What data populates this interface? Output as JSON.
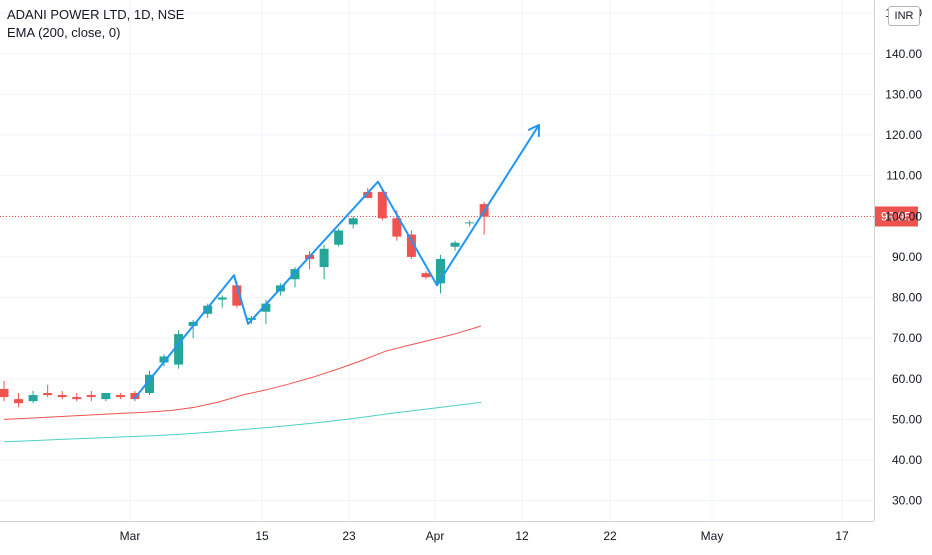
{
  "header": {
    "symbol_title": "ADANI POWER LTD, 1D, NSE",
    "indicator": "EMA (200, close, 0)",
    "currency": "INR"
  },
  "last_price": "99.95",
  "colors": {
    "up": "#26a69a",
    "down": "#ef5350",
    "ema_red": "#ef5350",
    "ema_teal": "#4dd0c8",
    "drawing": "#2196f3",
    "grid": "#f0f3fa",
    "axis_text": "#131722"
  },
  "chart_data": {
    "type": "candlestick",
    "y_axis": {
      "min": 25,
      "max": 152,
      "ticks": [
        "30.00",
        "40.00",
        "50.00",
        "60.00",
        "70.00",
        "80.00",
        "90.00",
        "100.00",
        "110.00",
        "120.00",
        "130.00",
        "140.00",
        "150.00"
      ]
    },
    "x_axis": {
      "labels": [
        "Mar",
        "15",
        "23",
        "Apr",
        "12",
        "22",
        "May",
        "17"
      ]
    },
    "price_line": 99.95,
    "candles": [
      {
        "o": 57.5,
        "h": 59.5,
        "l": 54.5,
        "c": 55.5
      },
      {
        "o": 55.0,
        "h": 56.5,
        "l": 53.0,
        "c": 54.0
      },
      {
        "o": 54.5,
        "h": 57.0,
        "l": 54.0,
        "c": 56.0
      },
      {
        "o": 56.5,
        "h": 58.5,
        "l": 55.5,
        "c": 56.0
      },
      {
        "o": 56.0,
        "h": 57.0,
        "l": 55.0,
        "c": 55.5
      },
      {
        "o": 55.5,
        "h": 56.5,
        "l": 54.5,
        "c": 55.0
      },
      {
        "o": 56.0,
        "h": 57.0,
        "l": 54.5,
        "c": 55.5
      },
      {
        "o": 55.0,
        "h": 56.5,
        "l": 54.5,
        "c": 56.5
      },
      {
        "o": 56.0,
        "h": 56.5,
        "l": 55.0,
        "c": 55.5
      },
      {
        "o": 56.5,
        "h": 57.0,
        "l": 54.5,
        "c": 55.0
      },
      {
        "o": 56.5,
        "h": 62.0,
        "l": 56.0,
        "c": 61.0
      },
      {
        "o": 64.0,
        "h": 66.0,
        "l": 63.0,
        "c": 65.5
      },
      {
        "o": 63.5,
        "h": 72.0,
        "l": 62.5,
        "c": 71.0
      },
      {
        "o": 73.0,
        "h": 74.5,
        "l": 70.0,
        "c": 74.0
      },
      {
        "o": 76.0,
        "h": 78.5,
        "l": 75.0,
        "c": 78.0
      },
      {
        "o": 79.5,
        "h": 80.5,
        "l": 77.5,
        "c": 80.0
      },
      {
        "o": 83.0,
        "h": 84.0,
        "l": 77.5,
        "c": 78.0
      },
      {
        "o": 74.5,
        "h": 75.5,
        "l": 73.5,
        "c": 75.0
      },
      {
        "o": 76.5,
        "h": 79.5,
        "l": 73.5,
        "c": 78.5
      },
      {
        "o": 81.5,
        "h": 83.5,
        "l": 80.5,
        "c": 83.0
      },
      {
        "o": 84.5,
        "h": 87.5,
        "l": 82.5,
        "c": 87.0
      },
      {
        "o": 90.5,
        "h": 91.5,
        "l": 87.0,
        "c": 89.5
      },
      {
        "o": 87.5,
        "h": 93.0,
        "l": 84.5,
        "c": 92.0
      },
      {
        "o": 93.0,
        "h": 97.0,
        "l": 92.5,
        "c": 96.5
      },
      {
        "o": 98.0,
        "h": 100.0,
        "l": 97.0,
        "c": 99.5
      },
      {
        "o": 106.0,
        "h": 107.0,
        "l": 104.5,
        "c": 104.5
      },
      {
        "o": 106.0,
        "h": 107.0,
        "l": 99.0,
        "c": 99.5
      },
      {
        "o": 99.5,
        "h": 101.5,
        "l": 94.0,
        "c": 95.0
      },
      {
        "o": 95.5,
        "h": 96.5,
        "l": 89.5,
        "c": 90.0
      },
      {
        "o": 86.0,
        "h": 86.5,
        "l": 84.5,
        "c": 85.0
      },
      {
        "o": 83.5,
        "h": 90.5,
        "l": 81.0,
        "c": 89.5
      },
      {
        "o": 92.5,
        "h": 94.0,
        "l": 91.5,
        "c": 93.5
      },
      {
        "o": 98.5,
        "h": 99.0,
        "l": 97.5,
        "c": 98.5
      },
      {
        "o": 103.0,
        "h": 103.5,
        "l": 95.5,
        "c": 99.95
      }
    ],
    "ema_red": [
      50.0,
      50.3,
      50.6,
      50.9,
      51.2,
      51.5,
      51.8,
      52.2,
      53.0,
      54.3,
      56.0,
      57.3,
      58.8,
      60.5,
      62.4,
      64.5,
      66.8,
      68.3,
      69.7,
      71.2,
      73.0
    ],
    "ema_teal": [
      44.5,
      44.8,
      45.1,
      45.4,
      45.7,
      46.0,
      46.4,
      46.9,
      47.5,
      48.1,
      48.8,
      49.6,
      50.5,
      51.5,
      52.4,
      53.3,
      54.2
    ],
    "drawing_path": [
      [
        55.0
      ],
      [
        85.5
      ],
      [
        73.5
      ],
      [
        108.5
      ],
      [
        83.0
      ],
      [
        122.5
      ]
    ]
  }
}
